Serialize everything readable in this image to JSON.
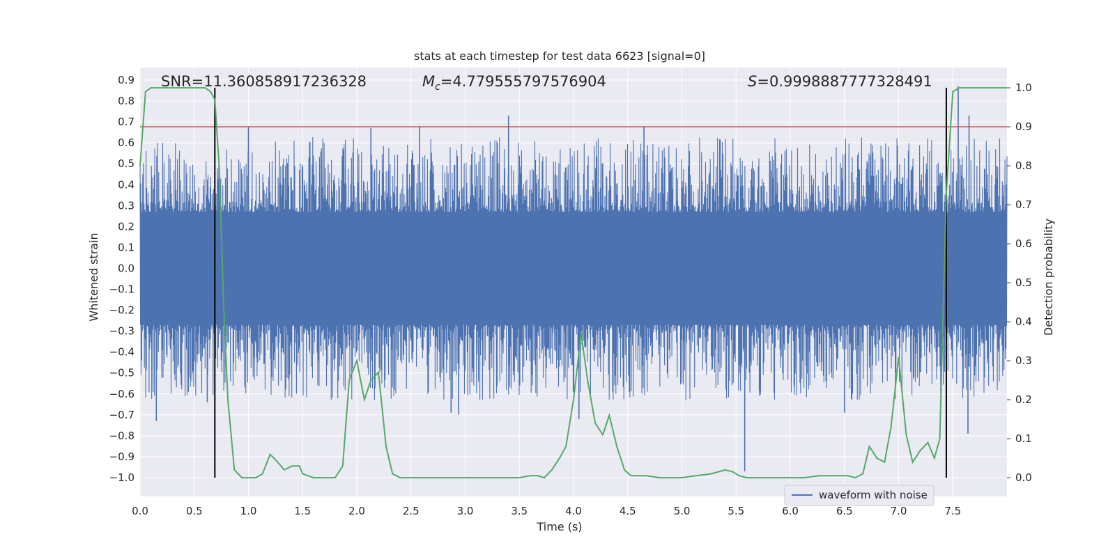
{
  "chart_data": {
    "type": "line",
    "title": "stats at each timestep for test data 6623 [signal=0]",
    "xlabel": "Time (s)",
    "ylabel": "Whitened strain",
    "y2label": "Detection probability",
    "xlim": [
      0.0,
      8.0
    ],
    "ylim": [
      -1.09,
      0.96
    ],
    "y2lim": [
      -0.048,
      1.052
    ],
    "xticks": [
      "0.0",
      "0.5",
      "1.0",
      "1.5",
      "2.0",
      "2.5",
      "3.0",
      "3.5",
      "4.0",
      "4.5",
      "5.0",
      "5.5",
      "6.0",
      "6.5",
      "7.0",
      "7.5"
    ],
    "yticks": [
      "-1.0",
      "-0.9",
      "-0.8",
      "-0.7",
      "-0.6",
      "-0.5",
      "-0.4",
      "-0.3",
      "-0.2",
      "-0.1",
      "0.0",
      "0.1",
      "0.2",
      "0.3",
      "0.4",
      "0.5",
      "0.6",
      "0.7",
      "0.8",
      "0.9"
    ],
    "y2ticks": [
      "0.0",
      "0.1",
      "0.2",
      "0.3",
      "0.4",
      "0.5",
      "0.6",
      "0.7",
      "0.8",
      "0.9",
      "1.0"
    ],
    "grid": true,
    "legend": {
      "placement": "lower-right",
      "entries": [
        "waveform with noise"
      ]
    },
    "annotations": {
      "snr": "SNR=11.360858917236328",
      "mc_symbol": "M",
      "mc_sub": "c",
      "mc_value": "=4.779555797576904",
      "s_symbol": "S",
      "s_value": "=0.9998887777328491"
    },
    "threshold": {
      "y2": 0.9,
      "color": "#c44e52"
    },
    "vlines": {
      "x": [
        0.69,
        7.44
      ],
      "y2": [
        0.0,
        1.0
      ],
      "color": "#000000"
    },
    "colors": {
      "waveform": "#4c72b0",
      "probability": "#55a868",
      "background": "#eaeaf2",
      "grid": "#ffffff"
    },
    "waveform": {
      "name": "waveform with noise",
      "t_range": [
        0.0,
        8.0
      ],
      "core_amplitude": 0.27,
      "spikes": [
        {
          "x": 0.15,
          "y": -0.73
        },
        {
          "x": 0.62,
          "y": -0.64
        },
        {
          "x": 1.0,
          "y": 0.68
        },
        {
          "x": 2.13,
          "y": 0.67
        },
        {
          "x": 2.58,
          "y": 0.68
        },
        {
          "x": 2.87,
          "y": -0.69
        },
        {
          "x": 2.94,
          "y": -0.7
        },
        {
          "x": 3.4,
          "y": 0.73
        },
        {
          "x": 4.05,
          "y": -0.72
        },
        {
          "x": 4.65,
          "y": 0.68
        },
        {
          "x": 5.58,
          "y": -0.97
        },
        {
          "x": 6.5,
          "y": -0.69
        },
        {
          "x": 7.55,
          "y": 0.87
        },
        {
          "x": 7.65,
          "y": 0.73
        },
        {
          "x": 7.64,
          "y": -0.79
        }
      ]
    },
    "probability": {
      "t": [
        0.0,
        0.05,
        0.1,
        0.2,
        0.3,
        0.4,
        0.5,
        0.6,
        0.65,
        0.69,
        0.73,
        0.77,
        0.81,
        0.87,
        0.94,
        1.0,
        1.07,
        1.13,
        1.2,
        1.27,
        1.33,
        1.4,
        1.47,
        1.5,
        1.6,
        1.7,
        1.8,
        1.87,
        1.93,
        2.0,
        2.07,
        2.13,
        2.2,
        2.27,
        2.33,
        2.4,
        2.6,
        2.8,
        3.0,
        3.2,
        3.4,
        3.5,
        3.6,
        3.67,
        3.73,
        3.8,
        3.87,
        3.93,
        4.0,
        4.07,
        4.13,
        4.2,
        4.27,
        4.33,
        4.4,
        4.47,
        4.53,
        4.6,
        4.67,
        4.8,
        5.0,
        5.13,
        5.27,
        5.4,
        5.47,
        5.53,
        5.6,
        5.8,
        6.0,
        6.13,
        6.27,
        6.4,
        6.53,
        6.6,
        6.67,
        6.73,
        6.8,
        6.87,
        6.93,
        7.0,
        7.07,
        7.13,
        7.2,
        7.27,
        7.33,
        7.38,
        7.44,
        7.5,
        7.56,
        7.6,
        7.7,
        7.8,
        7.9,
        8.0
      ],
      "p": [
        0.8,
        0.99,
        1.0,
        1.0,
        1.0,
        1.0,
        1.0,
        1.0,
        0.99,
        0.97,
        0.8,
        0.45,
        0.2,
        0.02,
        0.0,
        0.0,
        0.0,
        0.01,
        0.06,
        0.04,
        0.02,
        0.03,
        0.03,
        0.01,
        0.0,
        0.0,
        0.0,
        0.03,
        0.25,
        0.3,
        0.2,
        0.25,
        0.27,
        0.08,
        0.01,
        0.0,
        0.0,
        0.0,
        0.0,
        0.0,
        0.0,
        0.0,
        0.005,
        0.005,
        0.0,
        0.02,
        0.05,
        0.08,
        0.2,
        0.37,
        0.25,
        0.14,
        0.11,
        0.16,
        0.08,
        0.02,
        0.005,
        0.005,
        0.005,
        0.0,
        0.0,
        0.005,
        0.01,
        0.02,
        0.015,
        0.005,
        0.0,
        0.0,
        0.0,
        0.0,
        0.005,
        0.005,
        0.005,
        0.0,
        0.01,
        0.08,
        0.05,
        0.04,
        0.13,
        0.31,
        0.11,
        0.04,
        0.07,
        0.09,
        0.05,
        0.1,
        0.73,
        0.99,
        1.0,
        1.0,
        1.0,
        1.0,
        1.0,
        1.0
      ]
    }
  }
}
